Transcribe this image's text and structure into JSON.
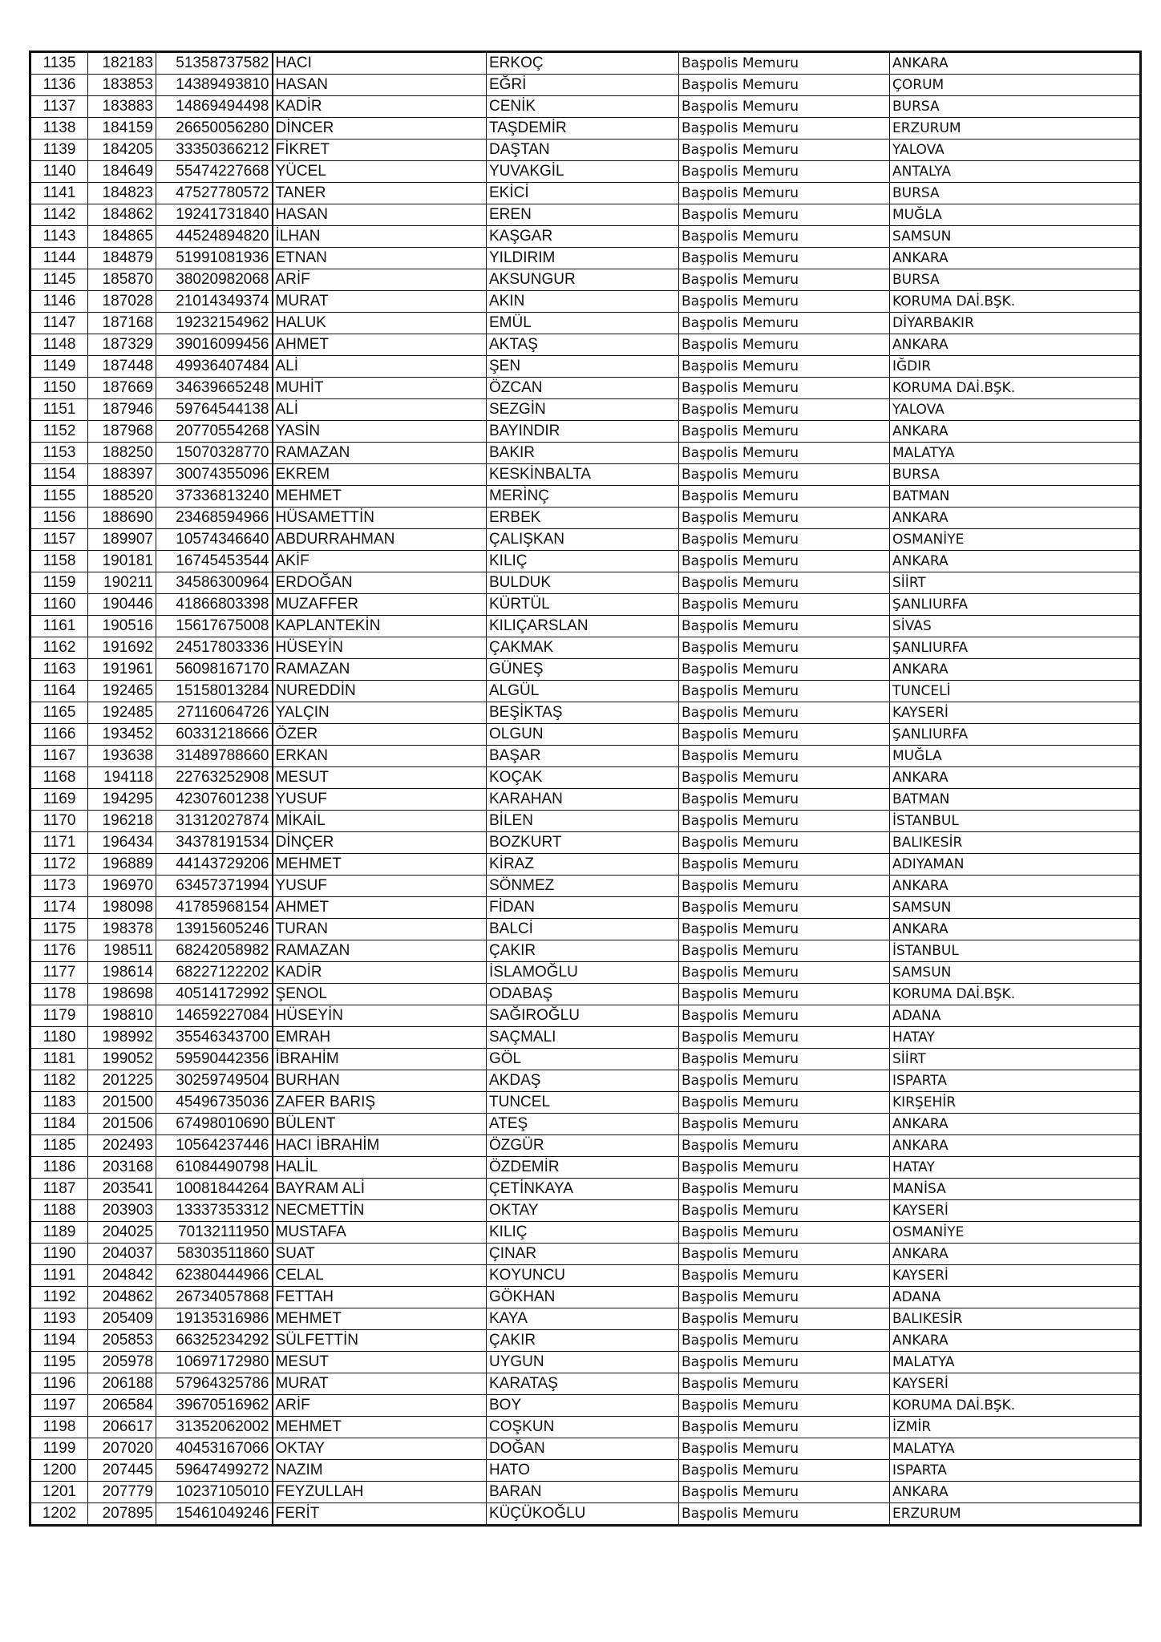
{
  "rows": [
    [
      "1135",
      "182183",
      "51358737582",
      "HACI",
      "ERKOÇ",
      "Başpolis Memuru",
      "ANKARA"
    ],
    [
      "1136",
      "183853",
      "14389493810",
      "HASAN",
      "EĞRİ",
      "Başpolis Memuru",
      "ÇORUM"
    ],
    [
      "1137",
      "183883",
      "14869494498",
      "KADİR",
      "CENİK",
      "Başpolis Memuru",
      "BURSA"
    ],
    [
      "1138",
      "184159",
      "26650056280",
      "DİNCER",
      "TAŞDEMİR",
      "Başpolis Memuru",
      "ERZURUM"
    ],
    [
      "1139",
      "184205",
      "33350366212",
      "FİKRET",
      "DAŞTAN",
      "Başpolis Memuru",
      "YALOVA"
    ],
    [
      "1140",
      "184649",
      "55474227668",
      "YÜCEL",
      "YUVAKGİL",
      "Başpolis Memuru",
      "ANTALYA"
    ],
    [
      "1141",
      "184823",
      "47527780572",
      "TANER",
      "EKİCİ",
      "Başpolis Memuru",
      "BURSA"
    ],
    [
      "1142",
      "184862",
      "19241731840",
      "HASAN",
      "EREN",
      "Başpolis Memuru",
      "MUĞLA"
    ],
    [
      "1143",
      "184865",
      "44524894820",
      "İLHAN",
      "KAŞGAR",
      "Başpolis Memuru",
      "SAMSUN"
    ],
    [
      "1144",
      "184879",
      "51991081936",
      "ETNAN",
      "YILDIRIM",
      "Başpolis Memuru",
      "ANKARA"
    ],
    [
      "1145",
      "185870",
      "38020982068",
      "ARİF",
      "AKSUNGUR",
      "Başpolis Memuru",
      "BURSA"
    ],
    [
      "1146",
      "187028",
      "21014349374",
      "MURAT",
      "AKIN",
      "Başpolis Memuru",
      "KORUMA DAİ.BŞK."
    ],
    [
      "1147",
      "187168",
      "19232154962",
      "HALUK",
      "EMÜL",
      "Başpolis Memuru",
      "DİYARBAKIR"
    ],
    [
      "1148",
      "187329",
      "39016099456",
      "AHMET",
      "AKTAŞ",
      "Başpolis Memuru",
      "ANKARA"
    ],
    [
      "1149",
      "187448",
      "49936407484",
      "ALİ",
      "ŞEN",
      "Başpolis Memuru",
      "IĞDIR"
    ],
    [
      "1150",
      "187669",
      "34639665248",
      "MUHİT",
      "ÖZCAN",
      "Başpolis Memuru",
      "KORUMA DAİ.BŞK."
    ],
    [
      "1151",
      "187946",
      "59764544138",
      "ALİ",
      "SEZGİN",
      "Başpolis Memuru",
      "YALOVA"
    ],
    [
      "1152",
      "187968",
      "20770554268",
      "YASİN",
      "BAYINDIR",
      "Başpolis Memuru",
      "ANKARA"
    ],
    [
      "1153",
      "188250",
      "15070328770",
      "RAMAZAN",
      "BAKIR",
      "Başpolis Memuru",
      "MALATYA"
    ],
    [
      "1154",
      "188397",
      "30074355096",
      "EKREM",
      "KESKİNBALTA",
      "Başpolis Memuru",
      "BURSA"
    ],
    [
      "1155",
      "188520",
      "37336813240",
      "MEHMET",
      "MERİNÇ",
      "Başpolis Memuru",
      "BATMAN"
    ],
    [
      "1156",
      "188690",
      "23468594966",
      "HÜSAMETTİN",
      "ERBEK",
      "Başpolis Memuru",
      "ANKARA"
    ],
    [
      "1157",
      "189907",
      "10574346640",
      "ABDURRAHMAN",
      "ÇALIŞKAN",
      "Başpolis Memuru",
      "OSMANİYE"
    ],
    [
      "1158",
      "190181",
      "16745453544",
      "AKİF",
      "KILIÇ",
      "Başpolis Memuru",
      "ANKARA"
    ],
    [
      "1159",
      "190211",
      "34586300964",
      "ERDOĞAN",
      "BULDUK",
      "Başpolis Memuru",
      "SİİRT"
    ],
    [
      "1160",
      "190446",
      "41866803398",
      "MUZAFFER",
      "KÜRTÜL",
      "Başpolis Memuru",
      "ŞANLIURFA"
    ],
    [
      "1161",
      "190516",
      "15617675008",
      "KAPLANTEKİN",
      "KILIÇARSLAN",
      "Başpolis Memuru",
      "SİVAS"
    ],
    [
      "1162",
      "191692",
      "24517803336",
      "HÜSEYİN",
      "ÇAKMAK",
      "Başpolis Memuru",
      "ŞANLIURFA"
    ],
    [
      "1163",
      "191961",
      "56098167170",
      "RAMAZAN",
      "GÜNEŞ",
      "Başpolis Memuru",
      "ANKARA"
    ],
    [
      "1164",
      "192465",
      "15158013284",
      "NUREDDİN",
      "ALGÜL",
      "Başpolis Memuru",
      "TUNCELİ"
    ],
    [
      "1165",
      "192485",
      "27116064726",
      "YALÇIN",
      "BEŞİKTAŞ",
      "Başpolis Memuru",
      "KAYSERİ"
    ],
    [
      "1166",
      "193452",
      "60331218666",
      "ÖZER",
      "OLGUN",
      "Başpolis Memuru",
      "ŞANLIURFA"
    ],
    [
      "1167",
      "193638",
      "31489788660",
      "ERKAN",
      "BAŞAR",
      "Başpolis Memuru",
      "MUĞLA"
    ],
    [
      "1168",
      "194118",
      "22763252908",
      "MESUT",
      "KOÇAK",
      "Başpolis Memuru",
      "ANKARA"
    ],
    [
      "1169",
      "194295",
      "42307601238",
      "YUSUF",
      "KARAHAN",
      "Başpolis Memuru",
      "BATMAN"
    ],
    [
      "1170",
      "196218",
      "31312027874",
      "MİKAİL",
      "BİLEN",
      "Başpolis Memuru",
      "İSTANBUL"
    ],
    [
      "1171",
      "196434",
      "34378191534",
      "DİNÇER",
      "BOZKURT",
      "Başpolis Memuru",
      "BALIKESİR"
    ],
    [
      "1172",
      "196889",
      "44143729206",
      "MEHMET",
      "KİRAZ",
      "Başpolis Memuru",
      "ADIYAMAN"
    ],
    [
      "1173",
      "196970",
      "63457371994",
      "YUSUF",
      "SÖNMEZ",
      "Başpolis Memuru",
      "ANKARA"
    ],
    [
      "1174",
      "198098",
      "41785968154",
      "AHMET",
      "FİDAN",
      "Başpolis Memuru",
      "SAMSUN"
    ],
    [
      "1175",
      "198378",
      "13915605246",
      "TURAN",
      "BALCİ",
      "Başpolis Memuru",
      "ANKARA"
    ],
    [
      "1176",
      "198511",
      "68242058982",
      "RAMAZAN",
      "ÇAKIR",
      "Başpolis Memuru",
      "İSTANBUL"
    ],
    [
      "1177",
      "198614",
      "68227122202",
      "KADİR",
      "İSLAMOĞLU",
      "Başpolis Memuru",
      "SAMSUN"
    ],
    [
      "1178",
      "198698",
      "40514172992",
      "ŞENOL",
      "ODABAŞ",
      "Başpolis Memuru",
      "KORUMA DAİ.BŞK."
    ],
    [
      "1179",
      "198810",
      "14659227084",
      "HÜSEYİN",
      "SAĞIROĞLU",
      "Başpolis Memuru",
      "ADANA"
    ],
    [
      "1180",
      "198992",
      "35546343700",
      "EMRAH",
      "SAÇMALI",
      "Başpolis Memuru",
      "HATAY"
    ],
    [
      "1181",
      "199052",
      "59590442356",
      "İBRAHİM",
      "GÖL",
      "Başpolis Memuru",
      "SİİRT"
    ],
    [
      "1182",
      "201225",
      "30259749504",
      "BURHAN",
      "AKDAŞ",
      "Başpolis Memuru",
      "ISPARTA"
    ],
    [
      "1183",
      "201500",
      "45496735036",
      "ZAFER BARIŞ",
      "TUNCEL",
      "Başpolis Memuru",
      "KIRŞEHİR"
    ],
    [
      "1184",
      "201506",
      "67498010690",
      "BÜLENT",
      "ATEŞ",
      "Başpolis Memuru",
      "ANKARA"
    ],
    [
      "1185",
      "202493",
      "10564237446",
      "HACI İBRAHİM",
      "ÖZGÜR",
      "Başpolis Memuru",
      "ANKARA"
    ],
    [
      "1186",
      "203168",
      "61084490798",
      "HALİL",
      "ÖZDEMİR",
      "Başpolis Memuru",
      "HATAY"
    ],
    [
      "1187",
      "203541",
      "10081844264",
      "BAYRAM ALİ",
      "ÇETİNKAYA",
      "Başpolis Memuru",
      "MANİSA"
    ],
    [
      "1188",
      "203903",
      "13337353312",
      "NECMETTİN",
      "OKTAY",
      "Başpolis Memuru",
      "KAYSERİ"
    ],
    [
      "1189",
      "204025",
      "70132111950",
      "MUSTAFA",
      "KILIÇ",
      "Başpolis Memuru",
      "OSMANİYE"
    ],
    [
      "1190",
      "204037",
      "58303511860",
      "SUAT",
      "ÇINAR",
      "Başpolis Memuru",
      "ANKARA"
    ],
    [
      "1191",
      "204842",
      "62380444966",
      "CELAL",
      "KOYUNCU",
      "Başpolis Memuru",
      "KAYSERİ"
    ],
    [
      "1192",
      "204862",
      "26734057868",
      "FETTAH",
      "GÖKHAN",
      "Başpolis Memuru",
      "ADANA"
    ],
    [
      "1193",
      "205409",
      "19135316986",
      "MEHMET",
      "KAYA",
      "Başpolis Memuru",
      "BALIKESİR"
    ],
    [
      "1194",
      "205853",
      "66325234292",
      "SÜLFETTİN",
      "ÇAKIR",
      "Başpolis Memuru",
      "ANKARA"
    ],
    [
      "1195",
      "205978",
      "10697172980",
      "MESUT",
      "UYGUN",
      "Başpolis Memuru",
      "MALATYA"
    ],
    [
      "1196",
      "206188",
      "57964325786",
      "MURAT",
      "KARATAŞ",
      "Başpolis Memuru",
      "KAYSERİ"
    ],
    [
      "1197",
      "206584",
      "39670516962",
      "ARİF",
      "BOY",
      "Başpolis Memuru",
      "KORUMA DAİ.BŞK."
    ],
    [
      "1198",
      "206617",
      "31352062002",
      "MEHMET",
      "COŞKUN",
      "Başpolis Memuru",
      "İZMİR"
    ],
    [
      "1199",
      "207020",
      "40453167066",
      "OKTAY",
      "DOĞAN",
      "Başpolis Memuru",
      "MALATYA"
    ],
    [
      "1200",
      "207445",
      "59647499272",
      "NAZIM",
      "HATO",
      "Başpolis Memuru",
      "ISPARTA"
    ],
    [
      "1201",
      "207779",
      "10237105010",
      "FEYZULLAH",
      "BARAN",
      "Başpolis Memuru",
      "ANKARA"
    ],
    [
      "1202",
      "207895",
      "15461049246",
      "FERİT",
      "KÜÇÜKOĞLU",
      "Başpolis Memuru",
      "ERZURUM"
    ]
  ]
}
